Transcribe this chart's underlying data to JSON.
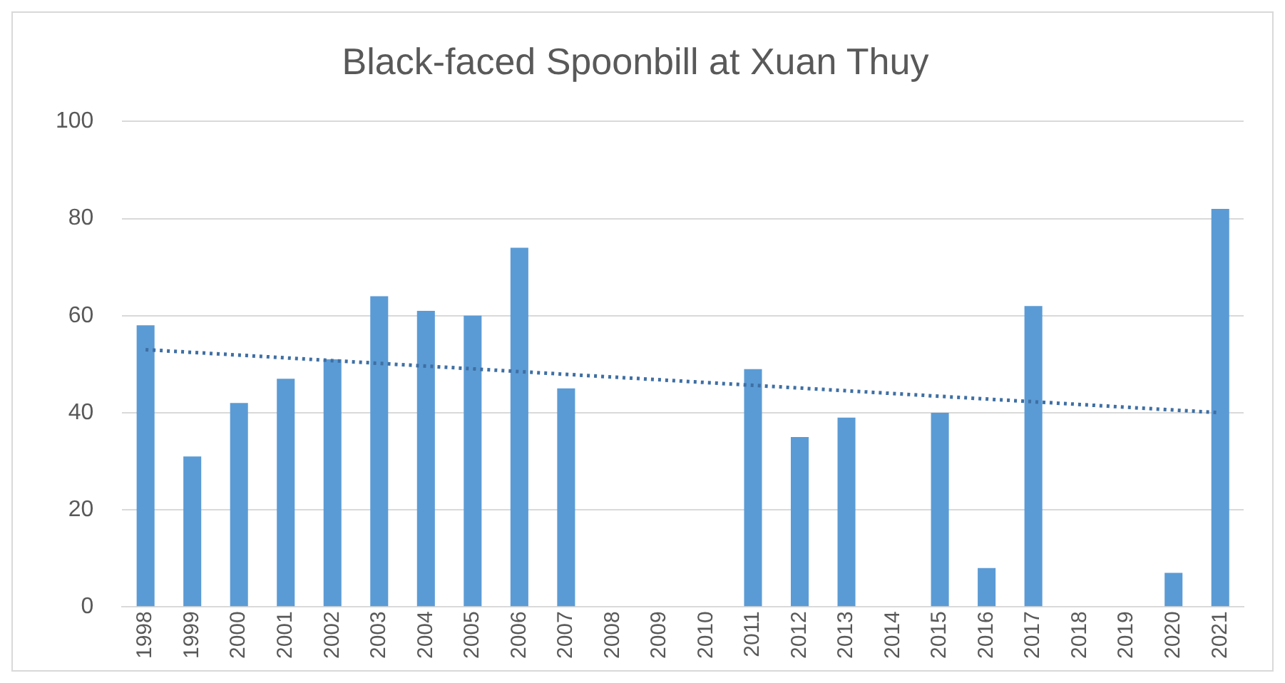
{
  "chart_data": {
    "type": "bar",
    "title": "Black-faced Spoonbill at Xuan Thuy",
    "categories": [
      "1998",
      "1999",
      "2000",
      "2001",
      "2002",
      "2003",
      "2004",
      "2005",
      "2006",
      "2007",
      "2008",
      "2009",
      "2010",
      "2011",
      "2012",
      "2013",
      "2014",
      "2015",
      "2016",
      "2017",
      "2018",
      "2019",
      "2020",
      "2021"
    ],
    "series": [
      {
        "color": "#5b9bd5",
        "values": [
          58,
          31,
          42,
          47,
          51,
          64,
          61,
          60,
          74,
          45,
          null,
          null,
          null,
          49,
          35,
          39,
          null,
          40,
          8,
          62,
          null,
          null,
          7,
          82
        ]
      },
      {
        "type": "line",
        "color": "#3f6fa3",
        "values": [
          53,
          null,
          null,
          null,
          null,
          null,
          null,
          null,
          null,
          null,
          null,
          null,
          null,
          null,
          null,
          null,
          null,
          null,
          null,
          null,
          null,
          null,
          null,
          40
        ],
        "line_style": "dotted"
      }
    ],
    "ylim": [
      0,
      100
    ],
    "yticks": [
      0,
      20,
      40,
      60,
      80,
      100
    ],
    "grid": "y",
    "legend": false
  }
}
